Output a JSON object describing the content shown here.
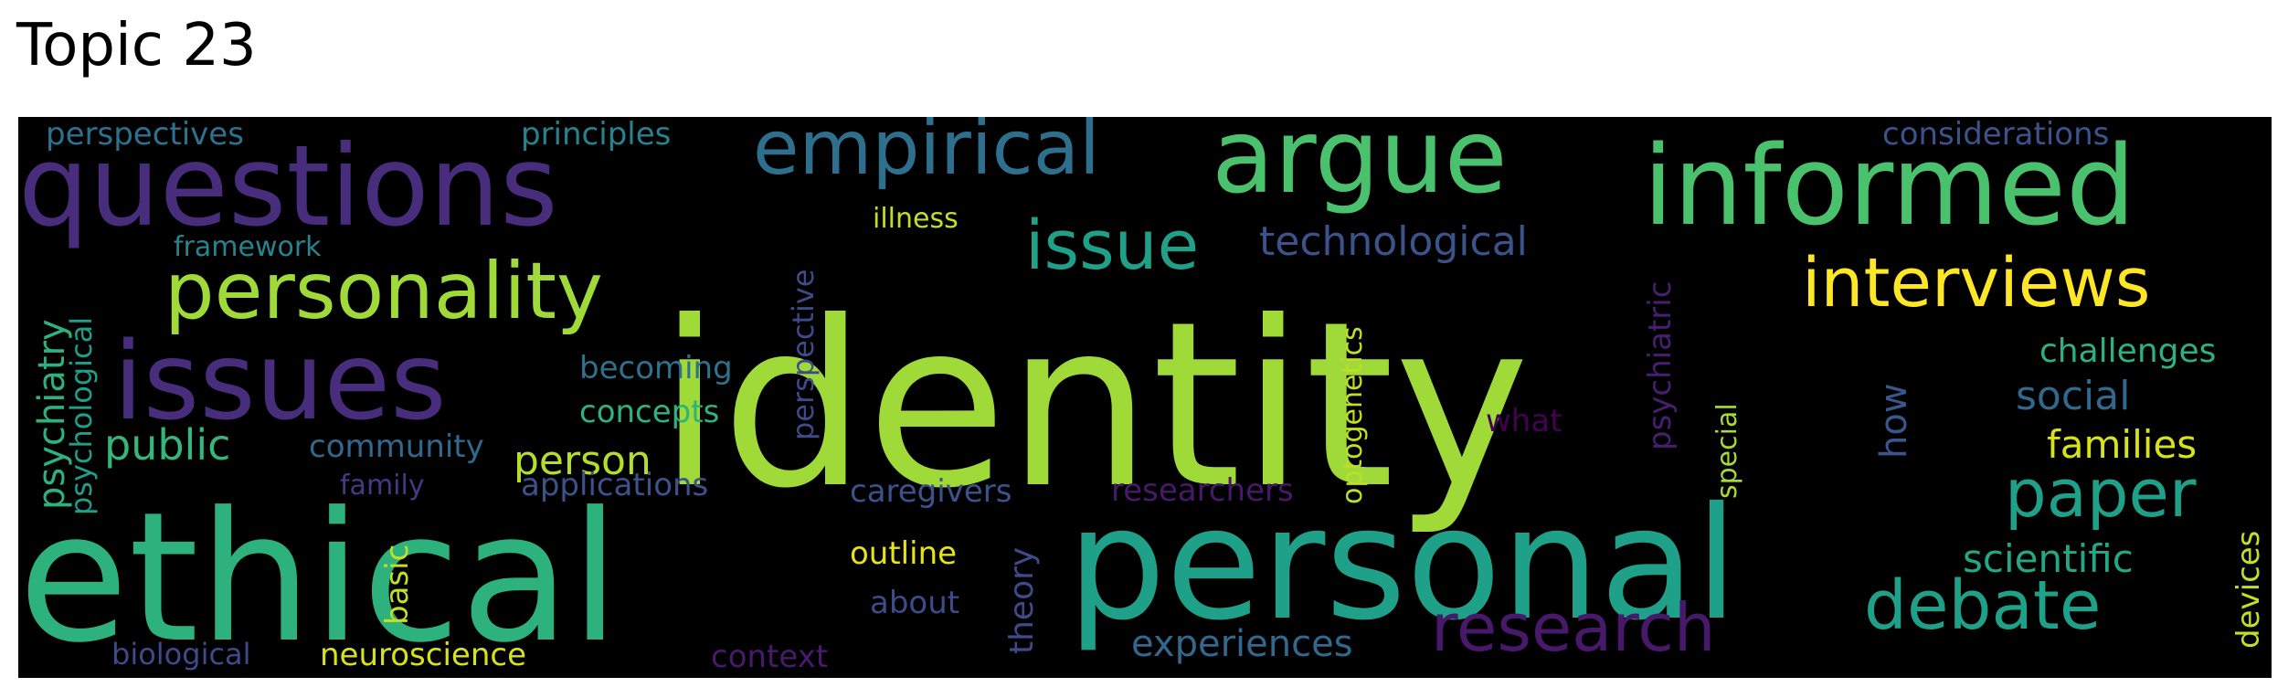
{
  "title": "Topic 23",
  "cloud": {
    "background": "#000000",
    "words": [
      {
        "text": "identity",
        "color": "#a0da39"
      },
      {
        "text": "ethical",
        "color": "#2db27d"
      },
      {
        "text": "personal",
        "color": "#1fa088"
      },
      {
        "text": "questions",
        "color": "#472d7b"
      },
      {
        "text": "informed",
        "color": "#4ac16d"
      },
      {
        "text": "argue",
        "color": "#4ac16d"
      },
      {
        "text": "issues",
        "color": "#472d7b"
      },
      {
        "text": "personality",
        "color": "#a0da39"
      },
      {
        "text": "empirical",
        "color": "#2e6f8e"
      },
      {
        "text": "interviews",
        "color": "#fde725"
      },
      {
        "text": "issue",
        "color": "#1fa088"
      },
      {
        "text": "research",
        "color": "#48186a"
      },
      {
        "text": "debate",
        "color": "#1fa088"
      },
      {
        "text": "paper",
        "color": "#1fa088"
      },
      {
        "text": "technological",
        "color": "#3b528b"
      },
      {
        "text": "public",
        "color": "#35b779"
      },
      {
        "text": "person",
        "color": "#b5de2b"
      },
      {
        "text": "psychiatry",
        "color": "#2db27d"
      },
      {
        "text": "experiences",
        "color": "#31688e"
      },
      {
        "text": "social",
        "color": "#31688e"
      },
      {
        "text": "scientific",
        "color": "#22a884"
      },
      {
        "text": "families",
        "color": "#d8e219"
      },
      {
        "text": "challenges",
        "color": "#2db27d"
      },
      {
        "text": "perspectives",
        "color": "#2c728e"
      },
      {
        "text": "principles",
        "color": "#26828e"
      },
      {
        "text": "considerations",
        "color": "#3b528b"
      },
      {
        "text": "framework",
        "color": "#25848e"
      },
      {
        "text": "illness",
        "color": "#c0df25"
      },
      {
        "text": "psychological",
        "color": "#1f9e89"
      },
      {
        "text": "perspective",
        "color": "#3e4a89"
      },
      {
        "text": "becoming",
        "color": "#2c728e"
      },
      {
        "text": "concepts",
        "color": "#2eb37c"
      },
      {
        "text": "community",
        "color": "#31688e"
      },
      {
        "text": "family",
        "color": "#443983"
      },
      {
        "text": "applications",
        "color": "#3b528b"
      },
      {
        "text": "caregivers",
        "color": "#3b528b"
      },
      {
        "text": "researchers",
        "color": "#48186a"
      },
      {
        "text": "what",
        "color": "#440154"
      },
      {
        "text": "psychiatric",
        "color": "#481f70"
      },
      {
        "text": "optogenetics",
        "color": "#bddf26"
      },
      {
        "text": "special",
        "color": "#a5db36"
      },
      {
        "text": "how",
        "color": "#39568c"
      },
      {
        "text": "basic",
        "color": "#c2df23"
      },
      {
        "text": "outline",
        "color": "#e5e419"
      },
      {
        "text": "about",
        "color": "#3e4a89"
      },
      {
        "text": "theory",
        "color": "#3e4a89"
      },
      {
        "text": "biological",
        "color": "#3e4a89"
      },
      {
        "text": "neuroscience",
        "color": "#d8e219"
      },
      {
        "text": "context",
        "color": "#481a6c"
      },
      {
        "text": "devices",
        "color": "#c2df23"
      }
    ]
  }
}
